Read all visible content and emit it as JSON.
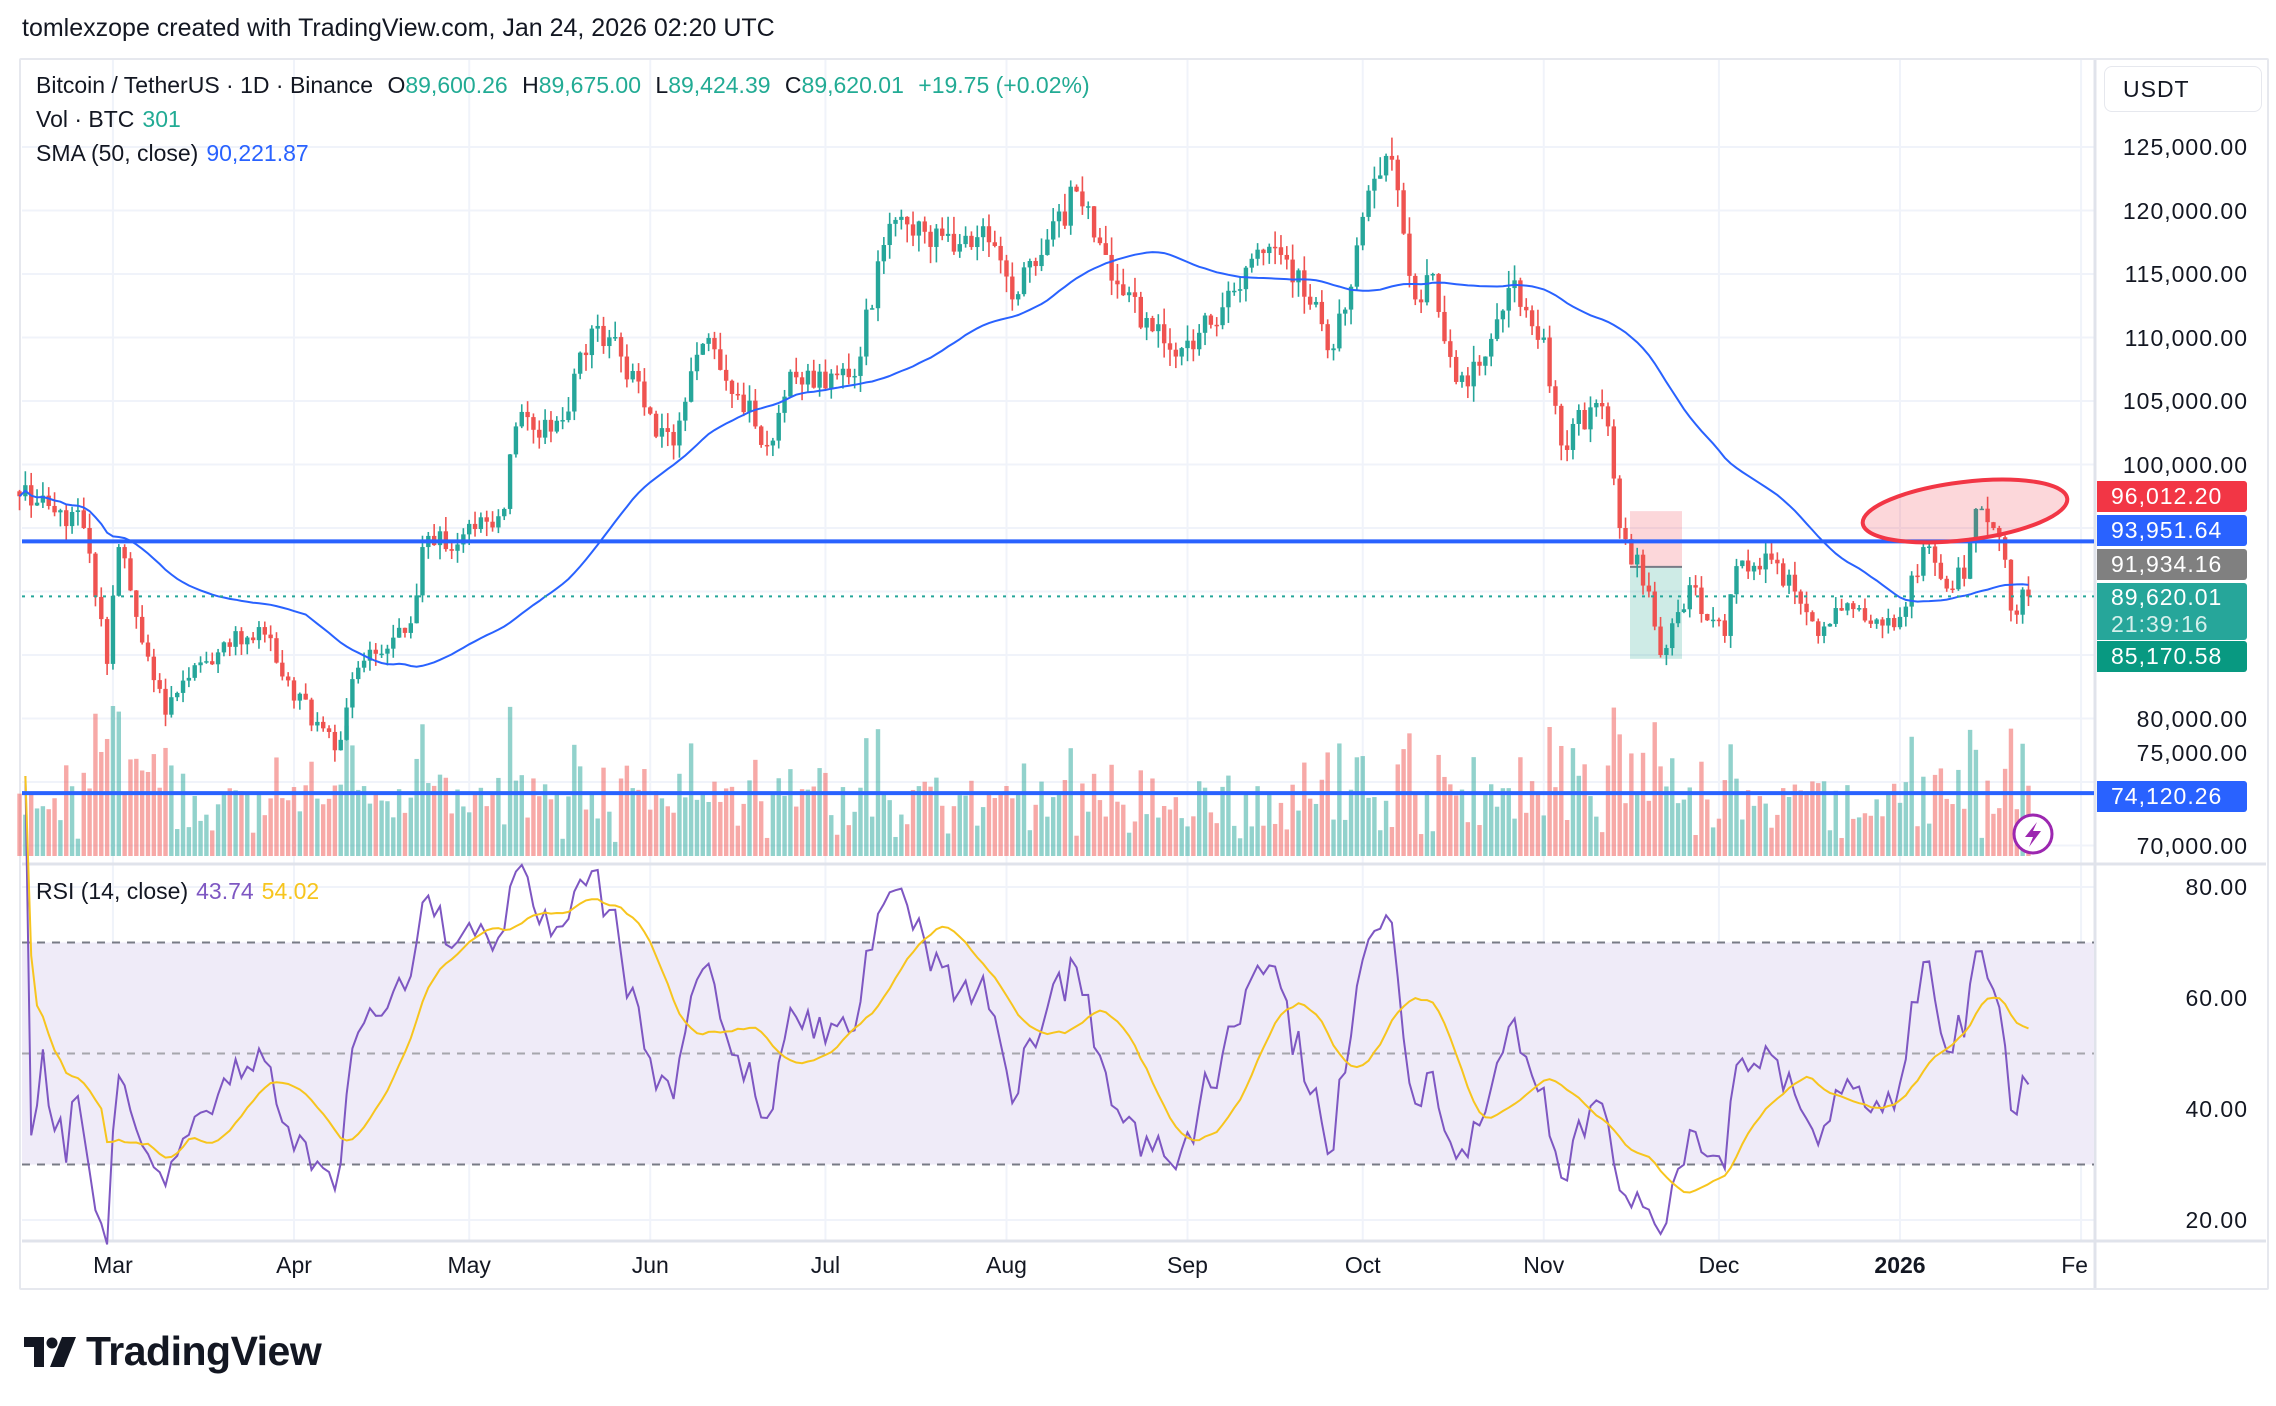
{
  "caption": "tomlexzope created with TradingView.com, Jan 24, 2026 02:20 UTC",
  "legend": {
    "symbol": "Bitcoin / TetherUS · 1D · Binance",
    "open_label": "O",
    "open": "89,600.26",
    "high_label": "H",
    "high": "89,675.00",
    "low_label": "L",
    "low": "89,424.39",
    "close_label": "C",
    "close": "89,620.01",
    "change": "+19.75 (+0.02%)",
    "volume_label": "Vol · BTC",
    "volume": "301",
    "sma_label": "SMA (50, close)",
    "sma": "90,221.87",
    "rsi_label": "RSI (14, close)",
    "rsi": "43.74",
    "rsi_ma": "54.02"
  },
  "currency": "USDT",
  "price_axis": [
    "125,000.00",
    "120,000.00",
    "115,000.00",
    "110,000.00",
    "105,000.00",
    "100,000.00",
    "80,000.00",
    "75,000.00",
    "70,000.00"
  ],
  "rsi_axis": [
    "80.00",
    "60.00",
    "40.00",
    "20.00"
  ],
  "price_labels": [
    {
      "text": "96,012.20",
      "color": "#f23645"
    },
    {
      "text": "93,951.64",
      "color": "#2962ff"
    },
    {
      "text": "91,934.16",
      "color": "#808080"
    },
    {
      "text": "89,620.01",
      "sub": "21:39:16",
      "color": "#26a69a"
    },
    {
      "text": "85,170.58",
      "color": "#089981"
    },
    {
      "text": "74,120.26",
      "color": "#2962ff"
    }
  ],
  "time_axis": [
    "Mar",
    "Apr",
    "May",
    "Jun",
    "Jul",
    "Aug",
    "Sep",
    "Oct",
    "Nov",
    "Dec",
    "2026",
    "Feb"
  ],
  "colors": {
    "up": "#26a69a",
    "down": "#ef5350",
    "sma": "#2962ff",
    "rsi": "#7e57c2",
    "rsi_ma": "#f7c51e",
    "hline": "#2962ff",
    "highlight": "#f23645"
  },
  "brand": "TradingView",
  "chart_data": {
    "type": "candlestick",
    "interval": "1D",
    "approximate_closes": [
      [
        "2025-02-13",
        97500
      ],
      [
        "2025-02-20",
        96400
      ],
      [
        "2025-02-24",
        95000
      ],
      [
        "2025-02-28",
        84300
      ],
      [
        "2025-03-02",
        93500
      ],
      [
        "2025-03-05",
        88000
      ],
      [
        "2025-03-10",
        80300
      ],
      [
        "2025-03-14",
        83200
      ],
      [
        "2025-03-20",
        86000
      ],
      [
        "2025-03-26",
        87200
      ],
      [
        "2025-03-31",
        83000
      ],
      [
        "2025-04-08",
        77500
      ],
      [
        "2025-04-12",
        84000
      ],
      [
        "2025-04-21",
        87500
      ],
      [
        "2025-04-23",
        93500
      ],
      [
        "2025-04-30",
        94500
      ],
      [
        "2025-05-07",
        96500
      ],
      [
        "2025-05-09",
        103000
      ],
      [
        "2025-05-17",
        103500
      ],
      [
        "2025-05-22",
        110700
      ],
      [
        "2025-05-27",
        108500
      ],
      [
        "2025-05-31",
        104500
      ],
      [
        "2025-06-05",
        101500
      ],
      [
        "2025-06-10",
        109500
      ],
      [
        "2025-06-16",
        105500
      ],
      [
        "2025-06-21",
        101500
      ],
      [
        "2025-06-25",
        107300
      ],
      [
        "2025-07-01",
        106000
      ],
      [
        "2025-07-07",
        108500
      ],
      [
        "2025-07-10",
        116000
      ],
      [
        "2025-07-14",
        119500
      ],
      [
        "2025-07-21",
        118000
      ],
      [
        "2025-07-29",
        117500
      ],
      [
        "2025-08-02",
        113000
      ],
      [
        "2025-08-07",
        116500
      ],
      [
        "2025-08-13",
        121500
      ],
      [
        "2025-08-18",
        116500
      ],
      [
        "2025-08-26",
        110500
      ],
      [
        "2025-08-30",
        108500
      ],
      [
        "2025-09-05",
        111000
      ],
      [
        "2025-09-11",
        115500
      ],
      [
        "2025-09-17",
        116500
      ],
      [
        "2025-09-23",
        112800
      ],
      [
        "2025-09-25",
        109000
      ],
      [
        "2025-09-29",
        114000
      ],
      [
        "2025-10-03",
        122500
      ],
      [
        "2025-10-06",
        124000
      ],
      [
        "2025-10-10",
        113000
      ],
      [
        "2025-10-13",
        115000
      ],
      [
        "2025-10-17",
        106500
      ],
      [
        "2025-10-22",
        108500
      ],
      [
        "2025-10-27",
        114500
      ],
      [
        "2025-11-01",
        110000
      ],
      [
        "2025-11-04",
        101500
      ],
      [
        "2025-11-09",
        104500
      ],
      [
        "2025-11-12",
        103000
      ],
      [
        "2025-11-14",
        95000
      ],
      [
        "2025-11-19",
        90000
      ],
      [
        "2025-11-21",
        85000
      ],
      [
        "2025-11-23",
        87500
      ],
      [
        "2025-11-26",
        90500
      ],
      [
        "2025-12-02",
        86500
      ],
      [
        "2025-12-04",
        92000
      ],
      [
        "2025-12-10",
        92500
      ],
      [
        "2025-12-14",
        90000
      ],
      [
        "2025-12-18",
        86500
      ],
      [
        "2025-12-22",
        88500
      ],
      [
        "2025-12-28",
        87800
      ],
      [
        "2026-01-01",
        88000
      ],
      [
        "2026-01-05",
        93500
      ],
      [
        "2026-01-08",
        91000
      ],
      [
        "2026-01-12",
        91000
      ],
      [
        "2026-01-14",
        96500
      ],
      [
        "2026-01-17",
        95000
      ],
      [
        "2026-01-19",
        92500
      ],
      [
        "2026-01-20",
        88500
      ],
      [
        "2026-01-23",
        89620
      ]
    ],
    "horizontal_lines": [
      93951.64,
      74120.26
    ],
    "long_position": {
      "stop": 96012.2,
      "entry": 91934.16,
      "target": 85170.58
    },
    "last_price": 89620.01,
    "indicators": [
      "Vol · BTC",
      "SMA (50, close)",
      "RSI (14, close)"
    ],
    "rsi_bands": [
      70,
      50,
      30
    ],
    "price_range": [
      70000,
      125000
    ],
    "rsi_range": [
      20,
      80
    ]
  }
}
